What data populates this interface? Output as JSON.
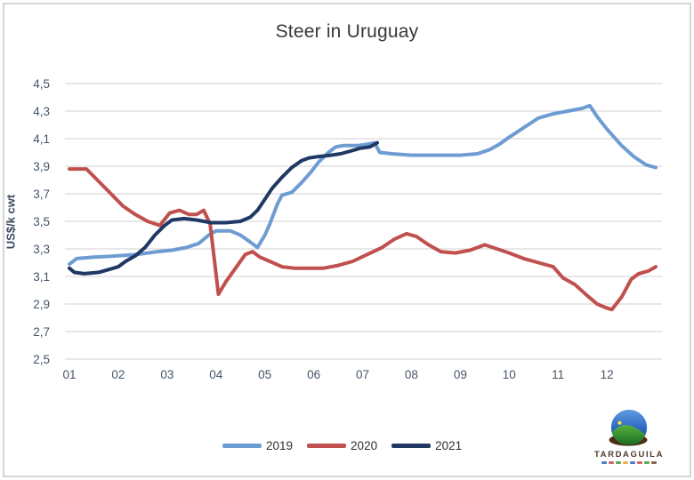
{
  "title": "Steer in Uruguay",
  "chart_data": {
    "type": "line",
    "title": "Steer in Uruguay",
    "xlabel": "",
    "ylabel": "US$/k cwt",
    "ylim": [
      2.5,
      4.5
    ],
    "xlim": [
      1,
      13
    ],
    "grid": true,
    "legend_position": "bottom",
    "x_unit": "month",
    "y_ticks": {
      "values": [
        4.5,
        4.3,
        4.1,
        3.9,
        3.7,
        3.5,
        3.3,
        3.1,
        2.9,
        2.7,
        2.5
      ],
      "labels": [
        "4,5",
        "4,3",
        "4,1",
        "3,9",
        "3,7",
        "3,5",
        "3,3",
        "3,1",
        "2,9",
        "2,7",
        "2,5"
      ]
    },
    "x_ticks": {
      "values": [
        1,
        2,
        3,
        4,
        5,
        6,
        7,
        8,
        9,
        10,
        11,
        12
      ],
      "labels": [
        "01",
        "02",
        "03",
        "04",
        "05",
        "06",
        "07",
        "08",
        "09",
        "10",
        "11",
        "12"
      ]
    },
    "series": [
      {
        "name": "2019",
        "color": "#6E9CD2",
        "points": [
          [
            1.0,
            3.19
          ],
          [
            1.15,
            3.23
          ],
          [
            1.5,
            3.24
          ],
          [
            2.0,
            3.25
          ],
          [
            2.4,
            3.26
          ],
          [
            2.8,
            3.28
          ],
          [
            3.1,
            3.29
          ],
          [
            3.4,
            3.31
          ],
          [
            3.65,
            3.34
          ],
          [
            3.85,
            3.4
          ],
          [
            4.0,
            3.43
          ],
          [
            4.3,
            3.43
          ],
          [
            4.5,
            3.4
          ],
          [
            4.7,
            3.35
          ],
          [
            4.85,
            3.31
          ],
          [
            5.0,
            3.4
          ],
          [
            5.1,
            3.48
          ],
          [
            5.25,
            3.62
          ],
          [
            5.35,
            3.69
          ],
          [
            5.55,
            3.71
          ],
          [
            5.75,
            3.78
          ],
          [
            5.95,
            3.86
          ],
          [
            6.1,
            3.93
          ],
          [
            6.3,
            4.0
          ],
          [
            6.45,
            4.04
          ],
          [
            6.6,
            4.05
          ],
          [
            6.9,
            4.05
          ],
          [
            7.1,
            4.06
          ],
          [
            7.25,
            4.07
          ],
          [
            7.35,
            4.0
          ],
          [
            7.6,
            3.99
          ],
          [
            8.0,
            3.98
          ],
          [
            8.5,
            3.98
          ],
          [
            9.0,
            3.98
          ],
          [
            9.35,
            3.99
          ],
          [
            9.6,
            4.02
          ],
          [
            9.8,
            4.06
          ],
          [
            10.0,
            4.11
          ],
          [
            10.3,
            4.18
          ],
          [
            10.6,
            4.25
          ],
          [
            10.9,
            4.28
          ],
          [
            11.2,
            4.3
          ],
          [
            11.5,
            4.32
          ],
          [
            11.65,
            4.34
          ],
          [
            11.8,
            4.26
          ],
          [
            12.0,
            4.17
          ],
          [
            12.3,
            4.05
          ],
          [
            12.55,
            3.97
          ],
          [
            12.8,
            3.91
          ],
          [
            13.0,
            3.89
          ]
        ]
      },
      {
        "name": "2020",
        "color": "#C0504D",
        "points": [
          [
            1.0,
            3.88
          ],
          [
            1.35,
            3.88
          ],
          [
            1.6,
            3.79
          ],
          [
            1.85,
            3.7
          ],
          [
            2.1,
            3.61
          ],
          [
            2.35,
            3.55
          ],
          [
            2.6,
            3.5
          ],
          [
            2.85,
            3.47
          ],
          [
            3.05,
            3.56
          ],
          [
            3.25,
            3.58
          ],
          [
            3.45,
            3.55
          ],
          [
            3.6,
            3.55
          ],
          [
            3.75,
            3.58
          ],
          [
            3.88,
            3.48
          ],
          [
            4.05,
            2.97
          ],
          [
            4.2,
            3.06
          ],
          [
            4.4,
            3.16
          ],
          [
            4.6,
            3.26
          ],
          [
            4.75,
            3.28
          ],
          [
            4.9,
            3.24
          ],
          [
            5.1,
            3.21
          ],
          [
            5.35,
            3.17
          ],
          [
            5.6,
            3.16
          ],
          [
            5.9,
            3.16
          ],
          [
            6.2,
            3.16
          ],
          [
            6.5,
            3.18
          ],
          [
            6.8,
            3.21
          ],
          [
            7.1,
            3.26
          ],
          [
            7.4,
            3.31
          ],
          [
            7.65,
            3.37
          ],
          [
            7.9,
            3.41
          ],
          [
            8.1,
            3.39
          ],
          [
            8.35,
            3.33
          ],
          [
            8.6,
            3.28
          ],
          [
            8.9,
            3.27
          ],
          [
            9.2,
            3.29
          ],
          [
            9.5,
            3.33
          ],
          [
            9.75,
            3.3
          ],
          [
            10.0,
            3.27
          ],
          [
            10.3,
            3.23
          ],
          [
            10.6,
            3.2
          ],
          [
            10.9,
            3.17
          ],
          [
            11.1,
            3.09
          ],
          [
            11.35,
            3.04
          ],
          [
            11.6,
            2.96
          ],
          [
            11.8,
            2.9
          ],
          [
            12.0,
            2.87
          ],
          [
            12.1,
            2.86
          ],
          [
            12.3,
            2.95
          ],
          [
            12.5,
            3.08
          ],
          [
            12.65,
            3.12
          ],
          [
            12.85,
            3.14
          ],
          [
            13.0,
            3.17
          ]
        ]
      },
      {
        "name": "2021",
        "color": "#1F3864",
        "points": [
          [
            1.0,
            3.16
          ],
          [
            1.1,
            3.13
          ],
          [
            1.3,
            3.12
          ],
          [
            1.6,
            3.13
          ],
          [
            1.8,
            3.15
          ],
          [
            2.0,
            3.17
          ],
          [
            2.15,
            3.21
          ],
          [
            2.35,
            3.25
          ],
          [
            2.55,
            3.31
          ],
          [
            2.75,
            3.4
          ],
          [
            2.95,
            3.47
          ],
          [
            3.1,
            3.51
          ],
          [
            3.35,
            3.52
          ],
          [
            3.6,
            3.51
          ],
          [
            3.9,
            3.49
          ],
          [
            4.2,
            3.49
          ],
          [
            4.5,
            3.5
          ],
          [
            4.7,
            3.53
          ],
          [
            4.85,
            3.58
          ],
          [
            5.0,
            3.66
          ],
          [
            5.15,
            3.74
          ],
          [
            5.35,
            3.82
          ],
          [
            5.55,
            3.89
          ],
          [
            5.75,
            3.94
          ],
          [
            5.9,
            3.96
          ],
          [
            6.1,
            3.97
          ],
          [
            6.35,
            3.98
          ],
          [
            6.55,
            3.99
          ],
          [
            6.75,
            4.01
          ],
          [
            6.95,
            4.03
          ],
          [
            7.15,
            4.04
          ],
          [
            7.3,
            4.07
          ]
        ]
      }
    ],
    "colors": {
      "gridline": "#D9D9D9",
      "tick_label": "#44546A",
      "title_text": "#383838"
    }
  },
  "legend": {
    "items": [
      "2019",
      "2020",
      "2021"
    ]
  },
  "logo": {
    "name": "TARDAGUILA",
    "colors": {
      "sky": "#2B66C0",
      "hill": "#3F9B35",
      "base": "#4A2D16",
      "sun": "#FFE73A",
      "text": "#4E3A2C"
    }
  }
}
